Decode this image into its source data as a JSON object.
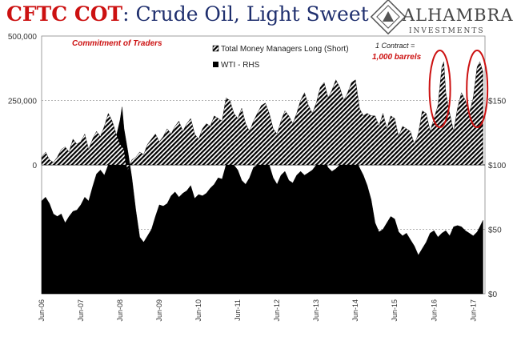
{
  "title": {
    "part1": "CFTC COT",
    "part2": ": Crude Oil, Light Sweet"
  },
  "logo": {
    "name": "ALHAMBRA",
    "sub": "INVESTMENTS"
  },
  "colors": {
    "title_red": "#cc1111",
    "title_blue": "#1f2f6e",
    "series_fill": "#000000",
    "annotation_red": "#cc1111"
  },
  "chart_data": {
    "type": "area",
    "subtitle": "Commitment of Traders",
    "x_tick_labels": [
      "Jun-06",
      "Jun-07",
      "Jun-08",
      "Jun-09",
      "Jun-10",
      "Jun-11",
      "Jun-12",
      "Jun-13",
      "Jun-14",
      "Jun-15",
      "Jun-16",
      "Jun-17"
    ],
    "x_range": [
      2006.45,
      2017.75
    ],
    "y_left": {
      "ticks": [
        "500,000",
        "250,000",
        "0"
      ],
      "range": [
        -500000,
        500000
      ]
    },
    "y_right": {
      "ticks": [
        "$150",
        "$100",
        "$50",
        "$0"
      ],
      "range": [
        0,
        200
      ]
    },
    "legend": [
      {
        "label": "Total Money Managers Long (Short)",
        "pattern": "hatched"
      },
      {
        "label": "WTI - RHS",
        "pattern": "solid"
      }
    ],
    "annotation": {
      "line1": "1 Contract =",
      "line2": "1,000 barrels"
    },
    "highlight_ellipses_x": [
      2016.6,
      2017.55
    ],
    "series": [
      {
        "name": "Total Money Managers Long (Short)",
        "axis": "left",
        "points": [
          [
            2006.45,
            30000
          ],
          [
            2006.55,
            50000
          ],
          [
            2006.65,
            20000
          ],
          [
            2006.75,
            10000
          ],
          [
            2006.85,
            30000
          ],
          [
            2006.95,
            60000
          ],
          [
            2007.05,
            70000
          ],
          [
            2007.15,
            50000
          ],
          [
            2007.25,
            100000
          ],
          [
            2007.35,
            80000
          ],
          [
            2007.45,
            90000
          ],
          [
            2007.55,
            120000
          ],
          [
            2007.65,
            60000
          ],
          [
            2007.75,
            100000
          ],
          [
            2007.85,
            130000
          ],
          [
            2007.95,
            110000
          ],
          [
            2008.05,
            150000
          ],
          [
            2008.15,
            200000
          ],
          [
            2008.25,
            170000
          ],
          [
            2008.35,
            120000
          ],
          [
            2008.45,
            80000
          ],
          [
            2008.55,
            60000
          ],
          [
            2008.6,
            0
          ],
          [
            2008.65,
            -20000
          ],
          [
            2008.75,
            20000
          ],
          [
            2008.85,
            30000
          ],
          [
            2008.95,
            50000
          ],
          [
            2009.05,
            40000
          ],
          [
            2009.15,
            80000
          ],
          [
            2009.25,
            100000
          ],
          [
            2009.35,
            120000
          ],
          [
            2009.45,
            90000
          ],
          [
            2009.55,
            110000
          ],
          [
            2009.65,
            140000
          ],
          [
            2009.75,
            120000
          ],
          [
            2009.85,
            150000
          ],
          [
            2009.95,
            170000
          ],
          [
            2010.05,
            130000
          ],
          [
            2010.15,
            160000
          ],
          [
            2010.25,
            180000
          ],
          [
            2010.35,
            120000
          ],
          [
            2010.45,
            100000
          ],
          [
            2010.55,
            140000
          ],
          [
            2010.65,
            160000
          ],
          [
            2010.75,
            150000
          ],
          [
            2010.85,
            190000
          ],
          [
            2010.95,
            180000
          ],
          [
            2011.05,
            170000
          ],
          [
            2011.15,
            260000
          ],
          [
            2011.25,
            250000
          ],
          [
            2011.35,
            200000
          ],
          [
            2011.45,
            180000
          ],
          [
            2011.55,
            220000
          ],
          [
            2011.65,
            160000
          ],
          [
            2011.75,
            130000
          ],
          [
            2011.85,
            170000
          ],
          [
            2011.95,
            200000
          ],
          [
            2012.05,
            230000
          ],
          [
            2012.15,
            240000
          ],
          [
            2012.25,
            200000
          ],
          [
            2012.35,
            140000
          ],
          [
            2012.45,
            120000
          ],
          [
            2012.55,
            170000
          ],
          [
            2012.65,
            210000
          ],
          [
            2012.75,
            190000
          ],
          [
            2012.85,
            160000
          ],
          [
            2012.95,
            200000
          ],
          [
            2013.05,
            250000
          ],
          [
            2013.15,
            280000
          ],
          [
            2013.25,
            230000
          ],
          [
            2013.35,
            200000
          ],
          [
            2013.45,
            240000
          ],
          [
            2013.55,
            300000
          ],
          [
            2013.65,
            320000
          ],
          [
            2013.75,
            260000
          ],
          [
            2013.85,
            290000
          ],
          [
            2013.95,
            330000
          ],
          [
            2014.05,
            300000
          ],
          [
            2014.15,
            250000
          ],
          [
            2014.25,
            280000
          ],
          [
            2014.35,
            320000
          ],
          [
            2014.45,
            330000
          ],
          [
            2014.55,
            220000
          ],
          [
            2014.65,
            190000
          ],
          [
            2014.75,
            200000
          ],
          [
            2014.85,
            190000
          ],
          [
            2014.95,
            190000
          ],
          [
            2015.05,
            150000
          ],
          [
            2015.15,
            200000
          ],
          [
            2015.25,
            140000
          ],
          [
            2015.35,
            190000
          ],
          [
            2015.45,
            180000
          ],
          [
            2015.55,
            110000
          ],
          [
            2015.65,
            150000
          ],
          [
            2015.75,
            140000
          ],
          [
            2015.85,
            130000
          ],
          [
            2015.95,
            80000
          ],
          [
            2016.05,
            120000
          ],
          [
            2016.15,
            210000
          ],
          [
            2016.25,
            200000
          ],
          [
            2016.35,
            130000
          ],
          [
            2016.45,
            180000
          ],
          [
            2016.55,
            230000
          ],
          [
            2016.65,
            380000
          ],
          [
            2016.7,
            400000
          ],
          [
            2016.75,
            280000
          ],
          [
            2016.85,
            200000
          ],
          [
            2016.95,
            130000
          ],
          [
            2017.05,
            220000
          ],
          [
            2017.15,
            280000
          ],
          [
            2017.25,
            250000
          ],
          [
            2017.35,
            200000
          ],
          [
            2017.45,
            260000
          ],
          [
            2017.55,
            380000
          ],
          [
            2017.62,
            400000
          ],
          [
            2017.7,
            360000
          ]
        ]
      },
      {
        "name": "WTI - RHS",
        "axis": "right",
        "points": [
          [
            2006.45,
            72
          ],
          [
            2006.55,
            75
          ],
          [
            2006.65,
            70
          ],
          [
            2006.75,
            62
          ],
          [
            2006.85,
            60
          ],
          [
            2006.95,
            62
          ],
          [
            2007.05,
            55
          ],
          [
            2007.15,
            60
          ],
          [
            2007.25,
            64
          ],
          [
            2007.35,
            65
          ],
          [
            2007.45,
            69
          ],
          [
            2007.55,
            75
          ],
          [
            2007.65,
            72
          ],
          [
            2007.75,
            83
          ],
          [
            2007.85,
            93
          ],
          [
            2007.95,
            96
          ],
          [
            2008.05,
            92
          ],
          [
            2008.15,
            100
          ],
          [
            2008.25,
            110
          ],
          [
            2008.35,
            122
          ],
          [
            2008.45,
            135
          ],
          [
            2008.5,
            145
          ],
          [
            2008.55,
            128
          ],
          [
            2008.65,
            110
          ],
          [
            2008.75,
            90
          ],
          [
            2008.85,
            65
          ],
          [
            2008.95,
            44
          ],
          [
            2009.05,
            40
          ],
          [
            2009.15,
            45
          ],
          [
            2009.25,
            50
          ],
          [
            2009.35,
            60
          ],
          [
            2009.45,
            69
          ],
          [
            2009.55,
            68
          ],
          [
            2009.65,
            70
          ],
          [
            2009.75,
            76
          ],
          [
            2009.85,
            79
          ],
          [
            2009.95,
            75
          ],
          [
            2010.05,
            78
          ],
          [
            2010.15,
            80
          ],
          [
            2010.25,
            84
          ],
          [
            2010.35,
            74
          ],
          [
            2010.45,
            77
          ],
          [
            2010.55,
            76
          ],
          [
            2010.65,
            78
          ],
          [
            2010.75,
            82
          ],
          [
            2010.85,
            85
          ],
          [
            2010.95,
            90
          ],
          [
            2011.05,
            89
          ],
          [
            2011.15,
            100
          ],
          [
            2011.25,
            110
          ],
          [
            2011.35,
            100
          ],
          [
            2011.45,
            96
          ],
          [
            2011.55,
            88
          ],
          [
            2011.65,
            85
          ],
          [
            2011.75,
            90
          ],
          [
            2011.85,
            98
          ],
          [
            2011.95,
            100
          ],
          [
            2012.05,
            102
          ],
          [
            2012.15,
            106
          ],
          [
            2012.25,
            100
          ],
          [
            2012.35,
            90
          ],
          [
            2012.45,
            85
          ],
          [
            2012.55,
            92
          ],
          [
            2012.65,
            95
          ],
          [
            2012.75,
            88
          ],
          [
            2012.85,
            86
          ],
          [
            2012.95,
            92
          ],
          [
            2013.05,
            95
          ],
          [
            2013.15,
            92
          ],
          [
            2013.25,
            94
          ],
          [
            2013.35,
            96
          ],
          [
            2013.45,
            100
          ],
          [
            2013.55,
            106
          ],
          [
            2013.65,
            104
          ],
          [
            2013.75,
            98
          ],
          [
            2013.85,
            95
          ],
          [
            2013.95,
            97
          ],
          [
            2014.05,
            100
          ],
          [
            2014.15,
            101
          ],
          [
            2014.25,
            102
          ],
          [
            2014.35,
            104
          ],
          [
            2014.45,
            105
          ],
          [
            2014.55,
            98
          ],
          [
            2014.65,
            92
          ],
          [
            2014.75,
            84
          ],
          [
            2014.85,
            73
          ],
          [
            2014.95,
            55
          ],
          [
            2015.05,
            48
          ],
          [
            2015.15,
            50
          ],
          [
            2015.25,
            55
          ],
          [
            2015.35,
            60
          ],
          [
            2015.45,
            58
          ],
          [
            2015.55,
            48
          ],
          [
            2015.65,
            45
          ],
          [
            2015.75,
            47
          ],
          [
            2015.85,
            42
          ],
          [
            2015.95,
            37
          ],
          [
            2016.05,
            30
          ],
          [
            2016.15,
            35
          ],
          [
            2016.25,
            40
          ],
          [
            2016.35,
            47
          ],
          [
            2016.45,
            49
          ],
          [
            2016.55,
            44
          ],
          [
            2016.65,
            47
          ],
          [
            2016.75,
            49
          ],
          [
            2016.85,
            45
          ],
          [
            2016.95,
            52
          ],
          [
            2017.05,
            53
          ],
          [
            2017.15,
            52
          ],
          [
            2017.25,
            49
          ],
          [
            2017.35,
            47
          ],
          [
            2017.45,
            45
          ],
          [
            2017.55,
            48
          ],
          [
            2017.62,
            52
          ],
          [
            2017.7,
            57
          ]
        ]
      }
    ]
  }
}
